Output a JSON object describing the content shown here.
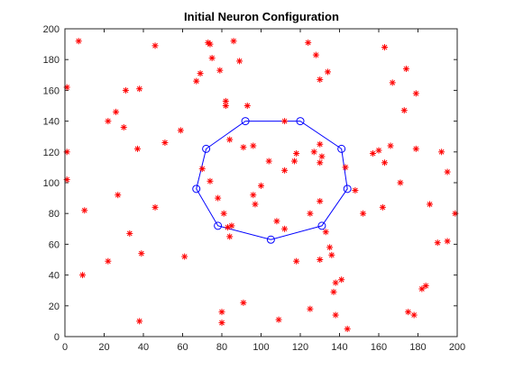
{
  "chart_data": {
    "type": "scatter",
    "title": "Initial Neuron Configuration",
    "xlabel": "",
    "ylabel": "",
    "xlim": [
      0,
      200
    ],
    "ylim": [
      0,
      200
    ],
    "xticks": [
      "0",
      "20",
      "40",
      "60",
      "80",
      "100",
      "120",
      "140",
      "160",
      "180",
      "200"
    ],
    "yticks": [
      "0",
      "20",
      "40",
      "60",
      "80",
      "100",
      "120",
      "140",
      "160",
      "180",
      "200"
    ],
    "grid": false,
    "colors": {
      "points": "#ff0000",
      "neurons": "#0000ff",
      "axes": "#262626"
    },
    "series": [
      {
        "marker": "asterisk",
        "points": [
          [
            7,
            192
          ],
          [
            1,
            162
          ],
          [
            1,
            120
          ],
          [
            1,
            102
          ],
          [
            10,
            82
          ],
          [
            9,
            40
          ],
          [
            22,
            49
          ],
          [
            22,
            140
          ],
          [
            26,
            146
          ],
          [
            27,
            92
          ],
          [
            30,
            136
          ],
          [
            31,
            160
          ],
          [
            33,
            67
          ],
          [
            37,
            122
          ],
          [
            38,
            10
          ],
          [
            38,
            161
          ],
          [
            39,
            54
          ],
          [
            46,
            189
          ],
          [
            46,
            84
          ],
          [
            51,
            126
          ],
          [
            59,
            134
          ],
          [
            61,
            52
          ],
          [
            67,
            166
          ],
          [
            69,
            171
          ],
          [
            70,
            109
          ],
          [
            73,
            191
          ],
          [
            74,
            190
          ],
          [
            74,
            101
          ],
          [
            75,
            181
          ],
          [
            78,
            90
          ],
          [
            79,
            173
          ],
          [
            80,
            9
          ],
          [
            80,
            16
          ],
          [
            82,
            153
          ],
          [
            82,
            150
          ],
          [
            81,
            80
          ],
          [
            84,
            65
          ],
          [
            84,
            128
          ],
          [
            83,
            71
          ],
          [
            85,
            72
          ],
          [
            86,
            192
          ],
          [
            89,
            179
          ],
          [
            91,
            123
          ],
          [
            91,
            22
          ],
          [
            93,
            150
          ],
          [
            96,
            124
          ],
          [
            96,
            92
          ],
          [
            97,
            86
          ],
          [
            100,
            98
          ],
          [
            104,
            114
          ],
          [
            108,
            75
          ],
          [
            109,
            11
          ],
          [
            112,
            140
          ],
          [
            112,
            108
          ],
          [
            112,
            70
          ],
          [
            117,
            114
          ],
          [
            118,
            49
          ],
          [
            118,
            119
          ],
          [
            124,
            191
          ],
          [
            125,
            80
          ],
          [
            125,
            18
          ],
          [
            127,
            120
          ],
          [
            128,
            183
          ],
          [
            130,
            125
          ],
          [
            130,
            113
          ],
          [
            130,
            167
          ],
          [
            130,
            88
          ],
          [
            130,
            50
          ],
          [
            131,
            117
          ],
          [
            133,
            68
          ],
          [
            134,
            172
          ],
          [
            135,
            58
          ],
          [
            136,
            53
          ],
          [
            137,
            29
          ],
          [
            138,
            35
          ],
          [
            138,
            14
          ],
          [
            141,
            37
          ],
          [
            143,
            110
          ],
          [
            144,
            5
          ],
          [
            148,
            95
          ],
          [
            152,
            80
          ],
          [
            157,
            119
          ],
          [
            160,
            121
          ],
          [
            162,
            84
          ],
          [
            163,
            113
          ],
          [
            163,
            188
          ],
          [
            166,
            124
          ],
          [
            167,
            165
          ],
          [
            171,
            100
          ],
          [
            173,
            147
          ],
          [
            174,
            174
          ],
          [
            175,
            16
          ],
          [
            178,
            14
          ],
          [
            179,
            122
          ],
          [
            179,
            158
          ],
          [
            182,
            31
          ],
          [
            184,
            33
          ],
          [
            186,
            86
          ],
          [
            190,
            61
          ],
          [
            192,
            120
          ],
          [
            195,
            62
          ],
          [
            195,
            107
          ],
          [
            199,
            80
          ]
        ]
      },
      {
        "marker": "circle-line",
        "closed": true,
        "points": [
          [
            92,
            140
          ],
          [
            120,
            140
          ],
          [
            141,
            122
          ],
          [
            144,
            96
          ],
          [
            131,
            72
          ],
          [
            105,
            63
          ],
          [
            78,
            72
          ],
          [
            67,
            96
          ],
          [
            72,
            122
          ]
        ]
      }
    ]
  }
}
